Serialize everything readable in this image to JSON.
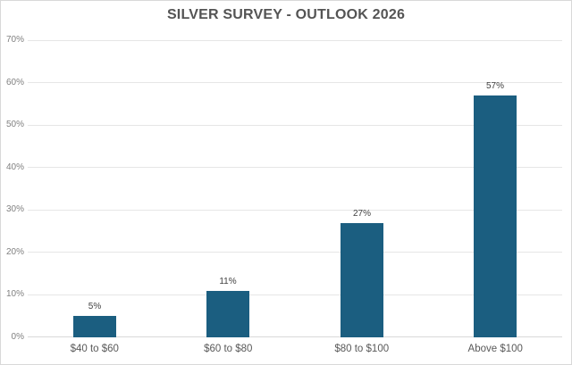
{
  "chart_data": {
    "type": "bar",
    "title": "SILVER SURVEY - OUTLOOK 2026",
    "categories": [
      "$40 to $60",
      "$60 to $80",
      "$80 to $100",
      "Above $100"
    ],
    "values": [
      5,
      11,
      27,
      57
    ],
    "value_labels": [
      "5%",
      "11%",
      "27%",
      "57%"
    ],
    "xlabel": "",
    "ylabel": "",
    "ylim": [
      0,
      70
    ],
    "ytick_interval": 10,
    "ytick_labels": [
      "0%",
      "10%",
      "20%",
      "30%",
      "40%",
      "50%",
      "60%",
      "70%"
    ],
    "grid": true,
    "legend": false,
    "colors": {
      "bar": "#1b5e80",
      "gridline": "#e6e6e6",
      "axis_line": "#d9d9d9",
      "title_text": "#545454",
      "ytick_text": "#808080",
      "xtick_text": "#595959",
      "value_label_text": "#404040",
      "background": "#ffffff",
      "frame_border": "#d9d9d9"
    }
  }
}
